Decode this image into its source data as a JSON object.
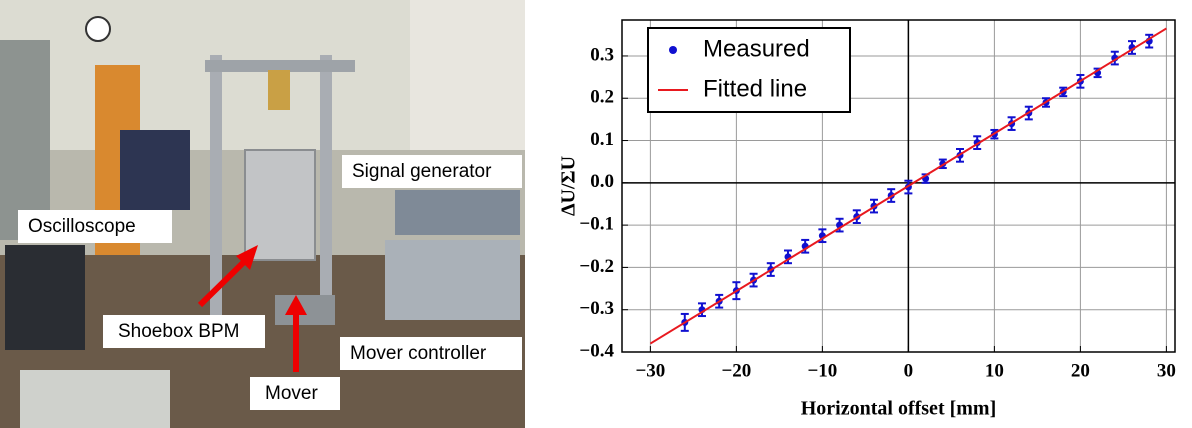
{
  "photo": {
    "labels": [
      "Signal generator",
      "Oscilloscope",
      "Shoebox BPM",
      "Mover controller",
      "Mover"
    ]
  },
  "chart_data": {
    "type": "scatter",
    "x_label": "Horizontal offset [mm]",
    "y_label": "ΔU/ΣU",
    "xlim": [
      -33.3,
      31
    ],
    "ylim": [
      -0.4,
      0.385
    ],
    "xticks": [
      {
        "value": -30,
        "label": "−30"
      },
      {
        "value": -20,
        "label": "−20"
      },
      {
        "value": -10,
        "label": "−10"
      },
      0,
      10,
      20,
      30
    ],
    "yticks": [
      {
        "value": -0.4,
        "label": "−0.4"
      },
      {
        "value": -0.3,
        "label": "−0.3"
      },
      {
        "value": -0.2,
        "label": "−0.2"
      },
      {
        "value": -0.1,
        "label": "−0.1"
      },
      {
        "value": 0,
        "label": "0.0"
      },
      0.1,
      0.2,
      0.3
    ],
    "grid": true,
    "legend": "upper left",
    "series": [
      {
        "name": "Measured",
        "color": "#1010d0",
        "kind": "points",
        "x": [
          -26,
          -24,
          -22,
          -20,
          -18,
          -16,
          -14,
          -12,
          -10,
          -8,
          -6,
          -4,
          -2,
          0,
          2,
          4,
          6,
          8,
          10,
          12,
          14,
          16,
          18,
          20,
          22,
          24,
          26,
          28
        ],
        "values": [
          -0.33,
          -0.3,
          -0.28,
          -0.255,
          -0.23,
          -0.205,
          -0.175,
          -0.15,
          -0.125,
          -0.1,
          -0.08,
          -0.055,
          -0.03,
          -0.01,
          0.01,
          0.045,
          0.065,
          0.095,
          0.115,
          0.14,
          0.165,
          0.19,
          0.215,
          0.24,
          0.26,
          0.295,
          0.32,
          0.335
        ],
        "errors": [
          0.02,
          0.015,
          0.015,
          0.02,
          0.015,
          0.015,
          0.015,
          0.015,
          0.015,
          0.015,
          0.015,
          0.015,
          0.015,
          0.015,
          0.01,
          0.01,
          0.015,
          0.015,
          0.01,
          0.015,
          0.015,
          0.01,
          0.01,
          0.015,
          0.01,
          0.015,
          0.015,
          0.015
        ]
      },
      {
        "name": "Fitted line",
        "color": "#e8191f",
        "kind": "line",
        "x": [
          -30,
          30
        ],
        "values": [
          -0.38,
          0.365
        ]
      }
    ]
  }
}
